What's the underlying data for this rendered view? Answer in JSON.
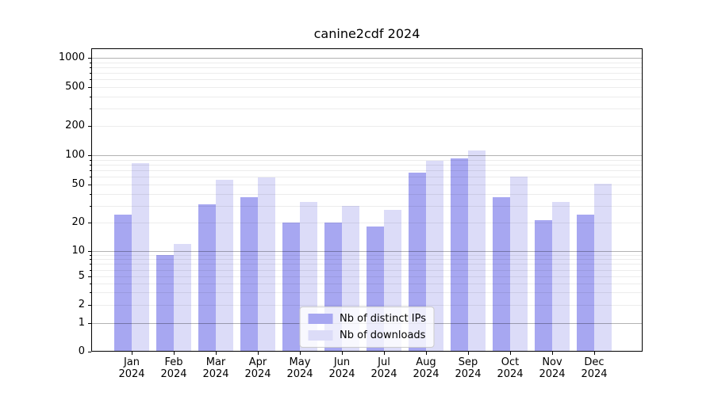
{
  "title": "canine2cdf 2024",
  "year_label": "2024",
  "colors": {
    "distinct_ips": "#a7a7f1",
    "downloads": "#dcdcf8",
    "grid_major": "#b5b5b5",
    "grid_minor": "#ececec"
  },
  "y_axis": {
    "tick_labels": [
      "1000",
      "500",
      "200",
      "100",
      "50",
      "20",
      "10",
      "5",
      "2",
      "1",
      "0"
    ]
  },
  "legend": {
    "items": [
      {
        "label": "Nb of distinct IPs",
        "color": "#a7a7f1"
      },
      {
        "label": "Nb of downloads",
        "color": "#dcdcf8"
      }
    ]
  },
  "chart_data": {
    "type": "bar",
    "title": "canine2cdf 2024",
    "categories": [
      "Jan",
      "Feb",
      "Mar",
      "Apr",
      "May",
      "Jun",
      "Jul",
      "Aug",
      "Sep",
      "Oct",
      "Nov",
      "Dec"
    ],
    "category_year": "2024",
    "series": [
      {
        "name": "Nb of distinct IPs",
        "color": "#a7a7f1",
        "values": [
          24,
          9,
          31,
          37,
          20,
          20,
          18,
          66,
          92,
          37,
          21,
          24
        ]
      },
      {
        "name": "Nb of downloads",
        "color": "#dcdcf8",
        "values": [
          83,
          12,
          56,
          59,
          33,
          30,
          27,
          87,
          112,
          60,
          33,
          51
        ]
      }
    ],
    "yscale": "log-with-zero",
    "yticks": [
      1000,
      500,
      200,
      100,
      50,
      20,
      10,
      5,
      2,
      1,
      0
    ],
    "ylim": [
      0,
      1400
    ],
    "grid": true,
    "legend_position": "lower center"
  }
}
